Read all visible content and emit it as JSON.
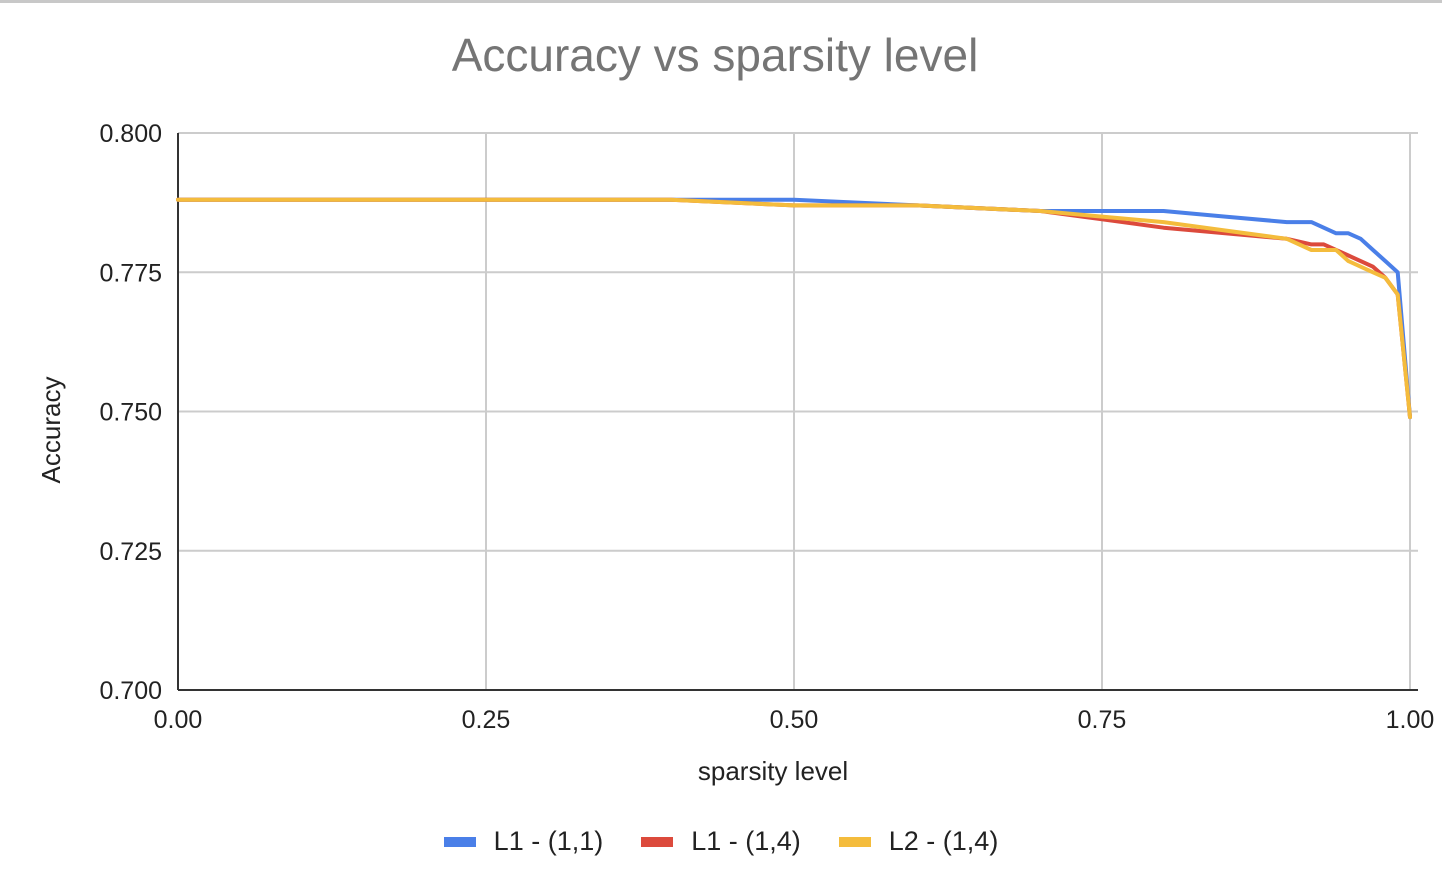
{
  "chart_data": {
    "type": "line",
    "title": "Accuracy vs sparsity level",
    "xlabel": "sparsity level",
    "ylabel": "Accuracy",
    "xlim": [
      0,
      1
    ],
    "ylim": [
      0.7,
      0.8
    ],
    "xticks": [
      "0.00",
      "0.25",
      "0.50",
      "0.75",
      "1.00"
    ],
    "yticks": [
      "0.800",
      "0.775",
      "0.750",
      "0.725",
      "0.700"
    ],
    "grid": true,
    "legend_position": "bottom",
    "series": [
      {
        "name": "L1 - (1,1)",
        "color": "#4a7fe8",
        "x": [
          0,
          0.1,
          0.2,
          0.3,
          0.4,
          0.5,
          0.6,
          0.7,
          0.75,
          0.8,
          0.85,
          0.9,
          0.92,
          0.94,
          0.95,
          0.96,
          0.97,
          0.98,
          0.99,
          1.0
        ],
        "y": [
          0.788,
          0.788,
          0.788,
          0.788,
          0.788,
          0.788,
          0.787,
          0.786,
          0.786,
          0.786,
          0.785,
          0.784,
          0.784,
          0.782,
          0.782,
          0.781,
          0.779,
          0.777,
          0.775,
          0.749
        ]
      },
      {
        "name": "L1 - (1,4)",
        "color": "#dc4a3c",
        "x": [
          0,
          0.1,
          0.2,
          0.3,
          0.4,
          0.5,
          0.6,
          0.7,
          0.75,
          0.8,
          0.85,
          0.9,
          0.92,
          0.93,
          0.95,
          0.97,
          0.98,
          0.99,
          1.0
        ],
        "y": [
          0.788,
          0.788,
          0.788,
          0.788,
          0.788,
          0.787,
          0.787,
          0.786,
          0.7845,
          0.783,
          0.782,
          0.781,
          0.78,
          0.78,
          0.778,
          0.776,
          0.774,
          0.771,
          0.749
        ]
      },
      {
        "name": "L2 - (1,4)",
        "color": "#f4bc3c",
        "x": [
          0,
          0.1,
          0.2,
          0.3,
          0.4,
          0.5,
          0.6,
          0.7,
          0.75,
          0.8,
          0.85,
          0.9,
          0.92,
          0.94,
          0.95,
          0.97,
          0.98,
          0.99,
          1.0
        ],
        "y": [
          0.788,
          0.788,
          0.788,
          0.788,
          0.788,
          0.787,
          0.787,
          0.786,
          0.785,
          0.784,
          0.7825,
          0.781,
          0.779,
          0.779,
          0.777,
          0.775,
          0.774,
          0.771,
          0.749
        ]
      }
    ]
  }
}
